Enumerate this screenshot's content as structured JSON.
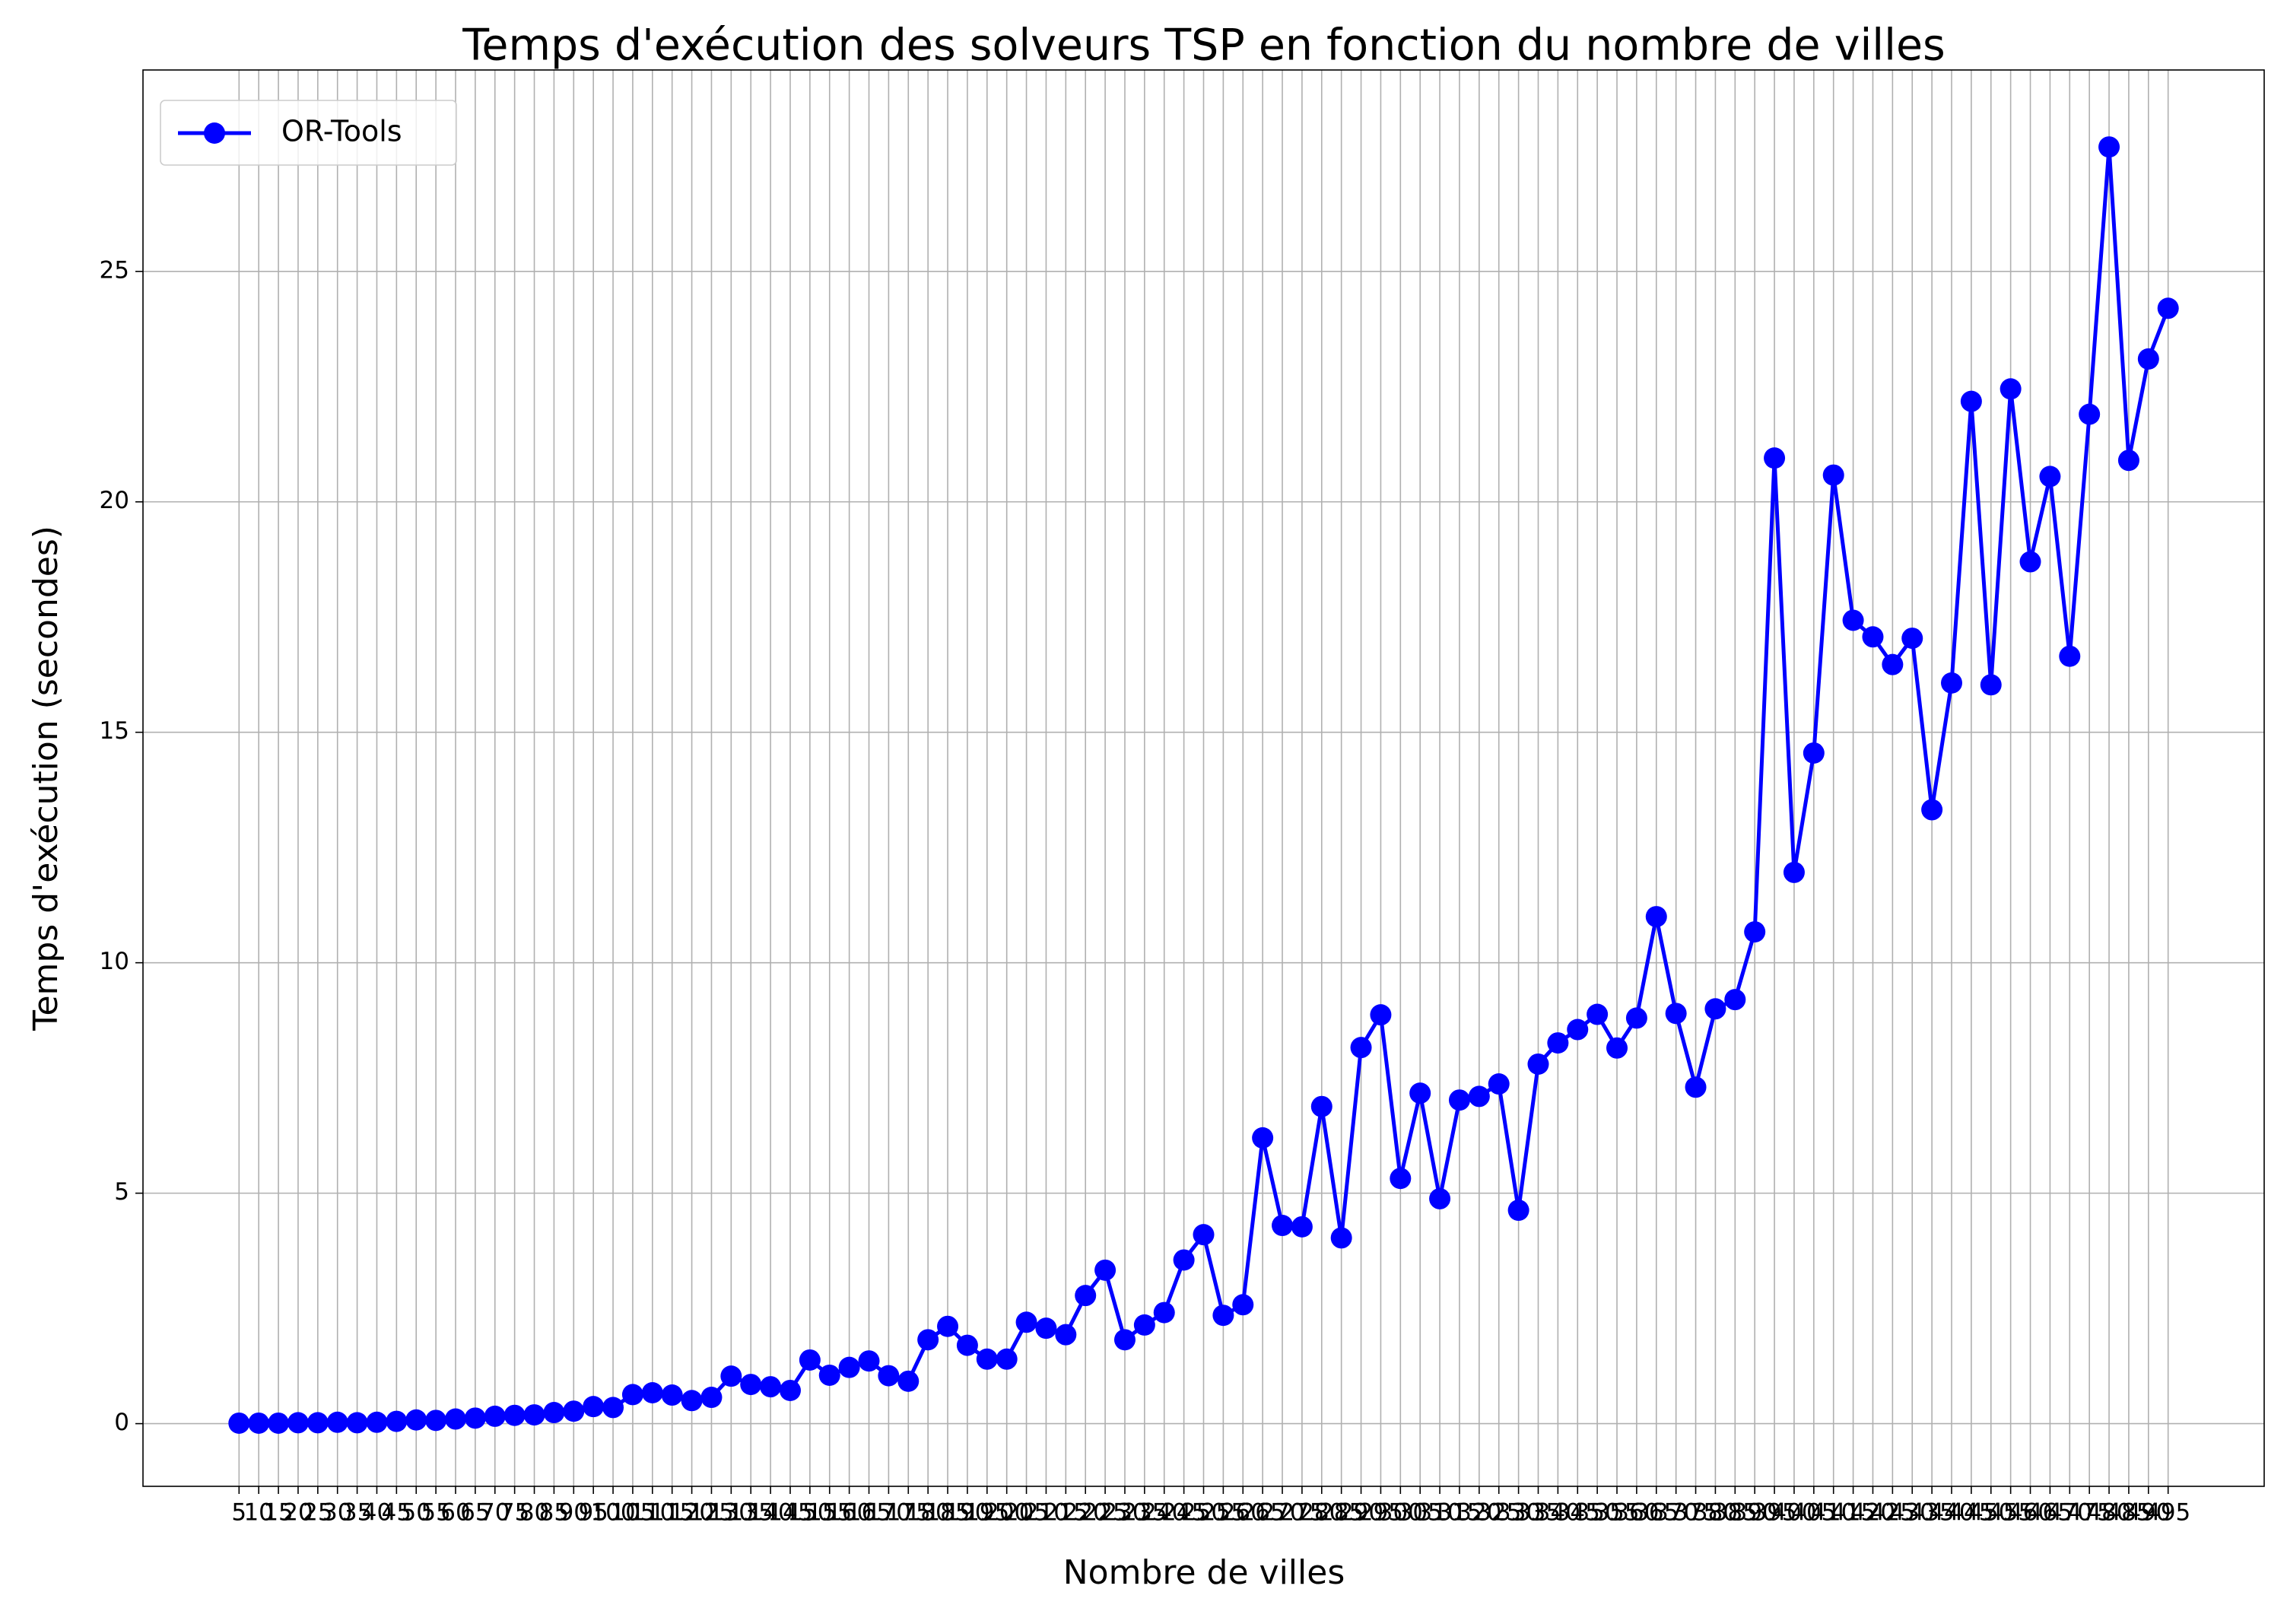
{
  "chart_data": {
    "type": "line",
    "title": "Temps d'exécution des solveurs TSP en fonction du nombre de villes",
    "x_label": "Nombre de villes",
    "y_label": "Temps d'exécution (secondes)",
    "x": [
      5,
      10,
      15,
      20,
      25,
      30,
      35,
      40,
      45,
      50,
      55,
      60,
      65,
      70,
      75,
      80,
      85,
      90,
      95,
      100,
      105,
      110,
      115,
      120,
      125,
      130,
      135,
      140,
      145,
      150,
      155,
      160,
      165,
      170,
      175,
      180,
      185,
      190,
      195,
      200,
      205,
      210,
      215,
      220,
      225,
      230,
      235,
      240,
      245,
      250,
      255,
      260,
      265,
      270,
      275,
      280,
      285,
      290,
      295,
      300,
      305,
      310,
      315,
      320,
      325,
      330,
      335,
      340,
      345,
      350,
      355,
      360,
      365,
      370,
      375,
      380,
      385,
      390,
      395,
      400,
      405,
      410,
      415,
      420,
      425,
      430,
      435,
      440,
      445,
      450,
      455,
      460,
      465,
      470,
      475,
      480,
      485,
      490,
      495
    ],
    "series": [
      {
        "name": "OR-Tools",
        "color": "#0000ff",
        "values": [
          0.01,
          0.01,
          0.01,
          0.02,
          0.02,
          0.03,
          0.02,
          0.03,
          0.05,
          0.08,
          0.07,
          0.1,
          0.12,
          0.16,
          0.18,
          0.19,
          0.24,
          0.27,
          0.37,
          0.35,
          0.63,
          0.67,
          0.62,
          0.5,
          0.57,
          1.03,
          0.85,
          0.8,
          0.72,
          1.38,
          1.05,
          1.22,
          1.36,
          1.04,
          0.92,
          1.82,
          2.11,
          1.7,
          1.4,
          1.4,
          2.2,
          2.07,
          1.93,
          2.78,
          3.33,
          1.82,
          2.14,
          2.41,
          3.55,
          4.1,
          2.35,
          2.58,
          6.2,
          4.3,
          4.27,
          6.88,
          4.03,
          8.16,
          8.87,
          5.32,
          7.17,
          4.88,
          7.02,
          7.1,
          7.37,
          4.63,
          7.8,
          8.26,
          8.55,
          8.88,
          8.15,
          8.8,
          11.0,
          8.9,
          7.3,
          9.0,
          9.2,
          10.67,
          20.95,
          11.96,
          14.55,
          20.58,
          17.43,
          17.07,
          16.47,
          17.04,
          13.32,
          16.07,
          22.18,
          16.03,
          22.45,
          18.7,
          20.55,
          16.65,
          21.9,
          27.7,
          20.9,
          23.1,
          24.2
        ]
      }
    ],
    "xlim": [
      -19.4,
      519.4
    ],
    "xticks": [
      5,
      10,
      15,
      20,
      25,
      30,
      35,
      40,
      45,
      50,
      55,
      60,
      65,
      70,
      75,
      80,
      85,
      90,
      95,
      100,
      105,
      110,
      115,
      120,
      125,
      130,
      135,
      140,
      145,
      150,
      155,
      160,
      165,
      170,
      175,
      180,
      185,
      190,
      195,
      200,
      205,
      210,
      215,
      220,
      225,
      230,
      235,
      240,
      245,
      250,
      255,
      260,
      265,
      270,
      275,
      280,
      285,
      290,
      295,
      300,
      305,
      310,
      315,
      320,
      325,
      330,
      335,
      340,
      345,
      350,
      355,
      360,
      365,
      370,
      375,
      380,
      385,
      390,
      395,
      400,
      405,
      410,
      415,
      420,
      425,
      430,
      435,
      440,
      445,
      450,
      455,
      460,
      465,
      470,
      475,
      480,
      485,
      490,
      495
    ],
    "ylim": [
      -1.36,
      29.37
    ],
    "yticks": [
      0,
      5,
      10,
      15,
      20,
      25
    ],
    "grid": true,
    "legend": "upper left"
  }
}
